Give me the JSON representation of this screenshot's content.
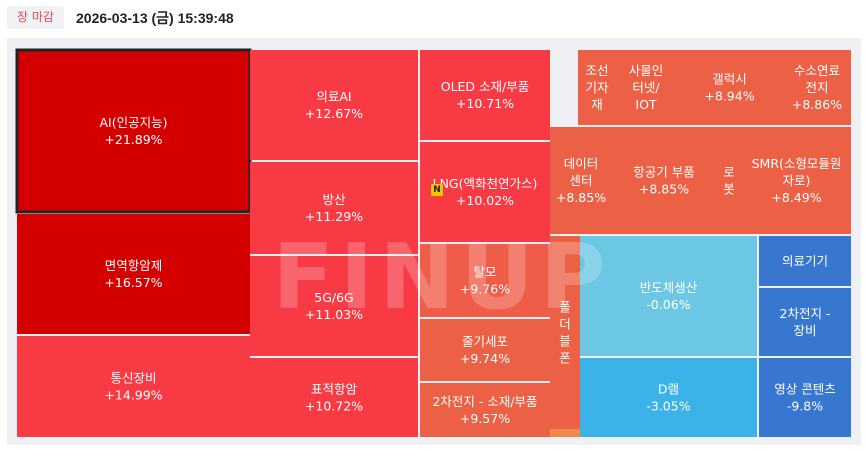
{
  "header": {
    "status_badge": "장 마감",
    "timestamp": "2026-03-13 (금) 15:39:48"
  },
  "watermark": "FINUP",
  "new_badge": "N",
  "colors": {
    "strong_red": "#d40000",
    "red": "#f83a44",
    "light_red": "#ef5c47",
    "orange_red": "#ec6046",
    "light_blue": "#6bc7e3",
    "blue": "#3bb2e8",
    "dark_blue": "#3777cf",
    "accent_orange": "#f08a4b"
  },
  "chart_data": {
    "type": "treemap",
    "cells": [
      {
        "name": "AI(인공지능)",
        "change": "+21.89%",
        "value": 21.89,
        "highlighted": true
      },
      {
        "name": "면역항암제",
        "change": "+16.57%",
        "value": 16.57
      },
      {
        "name": "통신장비",
        "change": "+14.99%",
        "value": 14.99
      },
      {
        "name": "의료AI",
        "change": "+12.67%",
        "value": 12.67
      },
      {
        "name": "방산",
        "change": "+11.29%",
        "value": 11.29
      },
      {
        "name": "5G/6G",
        "change": "+11.03%",
        "value": 11.03
      },
      {
        "name": "표적항암",
        "change": "+10.72%",
        "value": 10.72
      },
      {
        "name": "OLED 소재/부품",
        "change": "+10.71%",
        "value": 10.71
      },
      {
        "name": "LNG(액화천연가스)",
        "change": "+10.02%",
        "value": 10.02,
        "new": true
      },
      {
        "name": "탈모",
        "change": "+9.76%",
        "value": 9.76
      },
      {
        "name": "줄기세포",
        "change": "+9.74%",
        "value": 9.74
      },
      {
        "name": "2차전지 - 소재/부품",
        "change": "+9.57%",
        "value": 9.57
      },
      {
        "name": "조선기자재",
        "change": "",
        "value": null
      },
      {
        "name": "사물인터넷/IOT",
        "change": "",
        "value": null
      },
      {
        "name": "갤럭시",
        "change": "+8.94%",
        "value": 8.94
      },
      {
        "name": "수소연료전지",
        "change": "+8.86%",
        "value": 8.86
      },
      {
        "name": "데이터센터",
        "change": "+8.85%",
        "value": 8.85
      },
      {
        "name": "항공기 부품",
        "change": "+8.85%",
        "value": 8.85
      },
      {
        "name": "로봇",
        "change": "",
        "value": null
      },
      {
        "name": "SMR(소형모듈원자로)",
        "change": "+8.49%",
        "value": 8.49
      },
      {
        "name": "폴더블폰",
        "change": "",
        "value": null
      },
      {
        "name": "반도체생산",
        "change": "-0.06%",
        "value": -0.06
      },
      {
        "name": "D램",
        "change": "-3.05%",
        "value": -3.05
      },
      {
        "name": "의료기기",
        "change": "",
        "value": null
      },
      {
        "name": "2차전지 - 장비",
        "change": "",
        "value": null
      },
      {
        "name": "영상 콘텐츠",
        "change": "-9.8%",
        "value": -9.8
      }
    ]
  }
}
